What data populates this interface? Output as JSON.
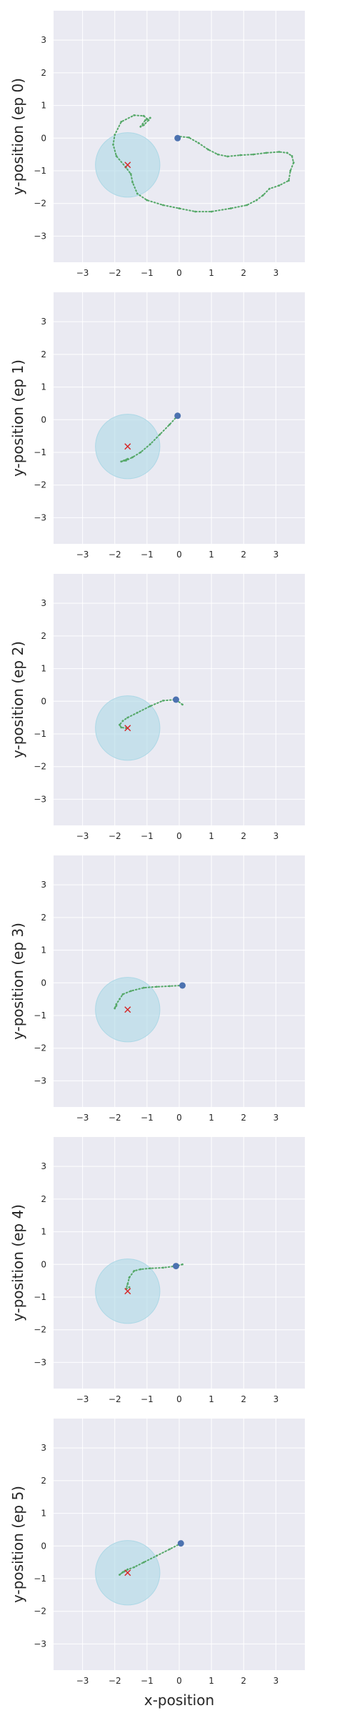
{
  "figure": {
    "xlabel": "x-position"
  },
  "chart_data": [
    {
      "type": "scatter",
      "ylabel": "y-position (ep 0)",
      "xlim": [
        -3.9,
        3.9
      ],
      "ylim": [
        -3.8,
        3.9
      ],
      "xticks": [
        -3,
        -2,
        -1,
        0,
        1,
        2,
        3
      ],
      "yticks": [
        -3,
        -2,
        -1,
        0,
        1,
        2,
        3
      ],
      "grid": true,
      "goal": {
        "x": -1.6,
        "y": -0.82,
        "radius": 1.0,
        "color": "#add8e6"
      },
      "start": {
        "x": -0.05,
        "y": 0.0,
        "color": "#4c72b0"
      },
      "goal_marker_color": "#d62728",
      "trajectory_color": "#55a868",
      "trajectory": [
        [
          -0.05,
          0.0
        ],
        [
          0.0,
          0.05
        ],
        [
          0.3,
          0.02
        ],
        [
          0.6,
          -0.15
        ],
        [
          0.9,
          -0.35
        ],
        [
          1.2,
          -0.5
        ],
        [
          1.5,
          -0.56
        ],
        [
          1.9,
          -0.52
        ],
        [
          2.3,
          -0.5
        ],
        [
          2.7,
          -0.45
        ],
        [
          3.1,
          -0.42
        ],
        [
          3.35,
          -0.45
        ],
        [
          3.5,
          -0.55
        ],
        [
          3.55,
          -0.75
        ],
        [
          3.45,
          -1.0
        ],
        [
          3.4,
          -1.3
        ],
        [
          3.1,
          -1.45
        ],
        [
          2.8,
          -1.55
        ],
        [
          2.6,
          -1.75
        ],
        [
          2.4,
          -1.9
        ],
        [
          2.1,
          -2.05
        ],
        [
          1.6,
          -2.15
        ],
        [
          1.0,
          -2.25
        ],
        [
          0.5,
          -2.25
        ],
        [
          0.0,
          -2.15
        ],
        [
          -0.5,
          -2.05
        ],
        [
          -1.0,
          -1.9
        ],
        [
          -1.3,
          -1.7
        ],
        [
          -1.45,
          -1.35
        ],
        [
          -1.5,
          -1.1
        ],
        [
          -1.65,
          -0.9
        ],
        [
          -1.95,
          -0.55
        ],
        [
          -2.05,
          -0.2
        ],
        [
          -2.0,
          0.1
        ],
        [
          -1.8,
          0.5
        ],
        [
          -1.4,
          0.7
        ],
        [
          -1.1,
          0.68
        ],
        [
          -0.95,
          0.55
        ],
        [
          -1.1,
          0.4
        ],
        [
          -1.2,
          0.35
        ],
        [
          -1.05,
          0.55
        ],
        [
          -0.9,
          0.62
        ]
      ]
    },
    {
      "type": "scatter",
      "ylabel": "y-position (ep 1)",
      "xlim": [
        -3.9,
        3.9
      ],
      "ylim": [
        -3.8,
        3.9
      ],
      "xticks": [
        -3,
        -2,
        -1,
        0,
        1,
        2,
        3
      ],
      "yticks": [
        -3,
        -2,
        -1,
        0,
        1,
        2,
        3
      ],
      "grid": true,
      "goal": {
        "x": -1.6,
        "y": -0.82,
        "radius": 1.0,
        "color": "#add8e6"
      },
      "start": {
        "x": -0.05,
        "y": 0.12,
        "color": "#4c72b0"
      },
      "goal_marker_color": "#d62728",
      "trajectory_color": "#55a868",
      "trajectory": [
        [
          -0.05,
          0.12
        ],
        [
          -0.3,
          -0.15
        ],
        [
          -0.6,
          -0.45
        ],
        [
          -0.9,
          -0.75
        ],
        [
          -1.2,
          -1.0
        ],
        [
          -1.45,
          -1.15
        ],
        [
          -1.65,
          -1.25
        ],
        [
          -1.8,
          -1.28
        ],
        [
          -1.6,
          -1.2
        ],
        [
          -1.7,
          -1.25
        ]
      ]
    },
    {
      "type": "scatter",
      "ylabel": "y-position (ep 2)",
      "xlim": [
        -3.9,
        3.9
      ],
      "ylim": [
        -3.8,
        3.9
      ],
      "xticks": [
        -3,
        -2,
        -1,
        0,
        1,
        2,
        3
      ],
      "yticks": [
        -3,
        -2,
        -1,
        0,
        1,
        2,
        3
      ],
      "grid": true,
      "goal": {
        "x": -1.6,
        "y": -0.82,
        "radius": 1.0,
        "color": "#add8e6"
      },
      "start": {
        "x": -0.1,
        "y": 0.05,
        "color": "#4c72b0"
      },
      "goal_marker_color": "#d62728",
      "trajectory_color": "#55a868",
      "trajectory": [
        [
          0.1,
          -0.1
        ],
        [
          -0.1,
          0.05
        ],
        [
          -0.5,
          0.02
        ],
        [
          -0.9,
          -0.15
        ],
        [
          -1.3,
          -0.35
        ],
        [
          -1.6,
          -0.5
        ],
        [
          -1.75,
          -0.6
        ],
        [
          -1.85,
          -0.72
        ],
        [
          -1.8,
          -0.8
        ],
        [
          -1.65,
          -0.82
        ]
      ]
    },
    {
      "type": "scatter",
      "ylabel": "y-position (ep 3)",
      "xlim": [
        -3.9,
        3.9
      ],
      "ylim": [
        -3.8,
        3.9
      ],
      "xticks": [
        -3,
        -2,
        -1,
        0,
        1,
        2,
        3
      ],
      "yticks": [
        -3,
        -2,
        -1,
        0,
        1,
        2,
        3
      ],
      "grid": true,
      "goal": {
        "x": -1.6,
        "y": -0.82,
        "radius": 1.0,
        "color": "#add8e6"
      },
      "start": {
        "x": 0.1,
        "y": -0.08,
        "color": "#4c72b0"
      },
      "goal_marker_color": "#d62728",
      "trajectory_color": "#55a868",
      "trajectory": [
        [
          0.1,
          -0.08
        ],
        [
          -0.3,
          -0.1
        ],
        [
          -0.7,
          -0.12
        ],
        [
          -1.1,
          -0.15
        ],
        [
          -1.5,
          -0.25
        ],
        [
          -1.75,
          -0.35
        ],
        [
          -1.85,
          -0.5
        ],
        [
          -1.95,
          -0.65
        ],
        [
          -2.0,
          -0.78
        ],
        [
          -1.95,
          -0.7
        ]
      ]
    },
    {
      "type": "scatter",
      "ylabel": "y-position (ep 4)",
      "xlim": [
        -3.9,
        3.9
      ],
      "ylim": [
        -3.8,
        3.9
      ],
      "xticks": [
        -3,
        -2,
        -1,
        0,
        1,
        2,
        3
      ],
      "yticks": [
        -3,
        -2,
        -1,
        0,
        1,
        2,
        3
      ],
      "grid": true,
      "goal": {
        "x": -1.6,
        "y": -0.82,
        "radius": 1.0,
        "color": "#add8e6"
      },
      "start": {
        "x": -0.1,
        "y": -0.05,
        "color": "#4c72b0"
      },
      "goal_marker_color": "#d62728",
      "trajectory_color": "#55a868",
      "trajectory": [
        [
          0.1,
          0.0
        ],
        [
          -0.1,
          -0.05
        ],
        [
          -0.5,
          -0.1
        ],
        [
          -0.9,
          -0.12
        ],
        [
          -1.2,
          -0.15
        ],
        [
          -1.4,
          -0.2
        ],
        [
          -1.55,
          -0.4
        ],
        [
          -1.6,
          -0.6
        ],
        [
          -1.65,
          -0.75
        ],
        [
          -1.55,
          -0.7
        ]
      ]
    },
    {
      "type": "scatter",
      "ylabel": "y-position (ep 5)",
      "xlim": [
        -3.9,
        3.9
      ],
      "ylim": [
        -3.8,
        3.9
      ],
      "xticks": [
        -3,
        -2,
        -1,
        0,
        1,
        2,
        3
      ],
      "yticks": [
        -3,
        -2,
        -1,
        0,
        1,
        2,
        3
      ],
      "grid": true,
      "goal": {
        "x": -1.6,
        "y": -0.82,
        "radius": 1.0,
        "color": "#add8e6"
      },
      "start": {
        "x": 0.05,
        "y": 0.08,
        "color": "#4c72b0"
      },
      "goal_marker_color": "#d62728",
      "trajectory_color": "#55a868",
      "trajectory": [
        [
          0.05,
          0.08
        ],
        [
          -0.3,
          -0.1
        ],
        [
          -0.7,
          -0.3
        ],
        [
          -1.1,
          -0.5
        ],
        [
          -1.4,
          -0.65
        ],
        [
          -1.6,
          -0.72
        ],
        [
          -1.75,
          -0.8
        ],
        [
          -1.85,
          -0.88
        ],
        [
          -1.7,
          -0.78
        ],
        [
          -1.6,
          -0.72
        ]
      ]
    }
  ]
}
